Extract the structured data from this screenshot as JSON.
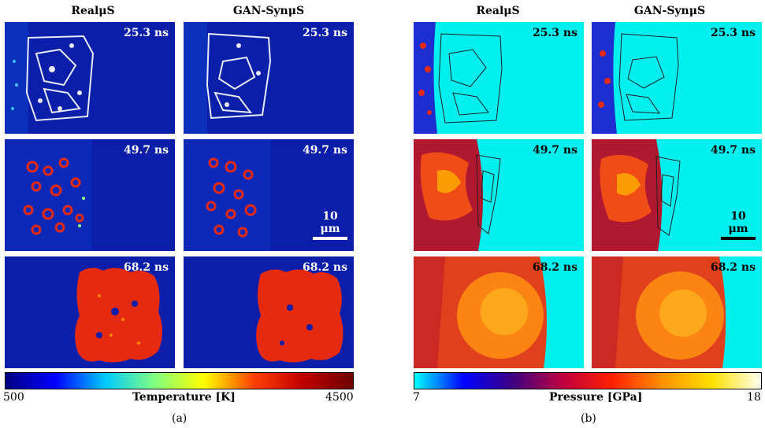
{
  "panel_a": {
    "column_headers": [
      "RealμS",
      "GAN-SynμS"
    ],
    "time_labels": [
      "25.3 ns",
      "49.7 ns",
      "68.2 ns"
    ],
    "scale_bar": "10 μm",
    "colorbar": {
      "min_label": "500",
      "max_label": "4500",
      "title": "Temperature [K]",
      "colors": [
        "#000080",
        "#0000ff",
        "#00c8ff",
        "#80ff80",
        "#ffff00",
        "#ff4000",
        "#c00000",
        "#700000"
      ]
    },
    "caption": "(a)"
  },
  "panel_b": {
    "column_headers": [
      "RealμS",
      "GAN-SynμS"
    ],
    "time_labels": [
      "25.3 ns",
      "49.7 ns",
      "68.2 ns"
    ],
    "scale_bar": "10 μm",
    "colorbar": {
      "min_label": "7",
      "max_label": "18",
      "title": "Pressure [GPa]",
      "colors": [
        "#00ffff",
        "#0000ff",
        "#400080",
        "#c00040",
        "#ff2000",
        "#ff9000",
        "#ffe000",
        "#fffff0"
      ]
    },
    "caption": "(b)"
  },
  "colors": {
    "temp_background": "#0a1eaa",
    "temp_hot": "#e62a10",
    "pressure_background": "#00f0f0",
    "pressure_hot": "#ff5a10"
  }
}
